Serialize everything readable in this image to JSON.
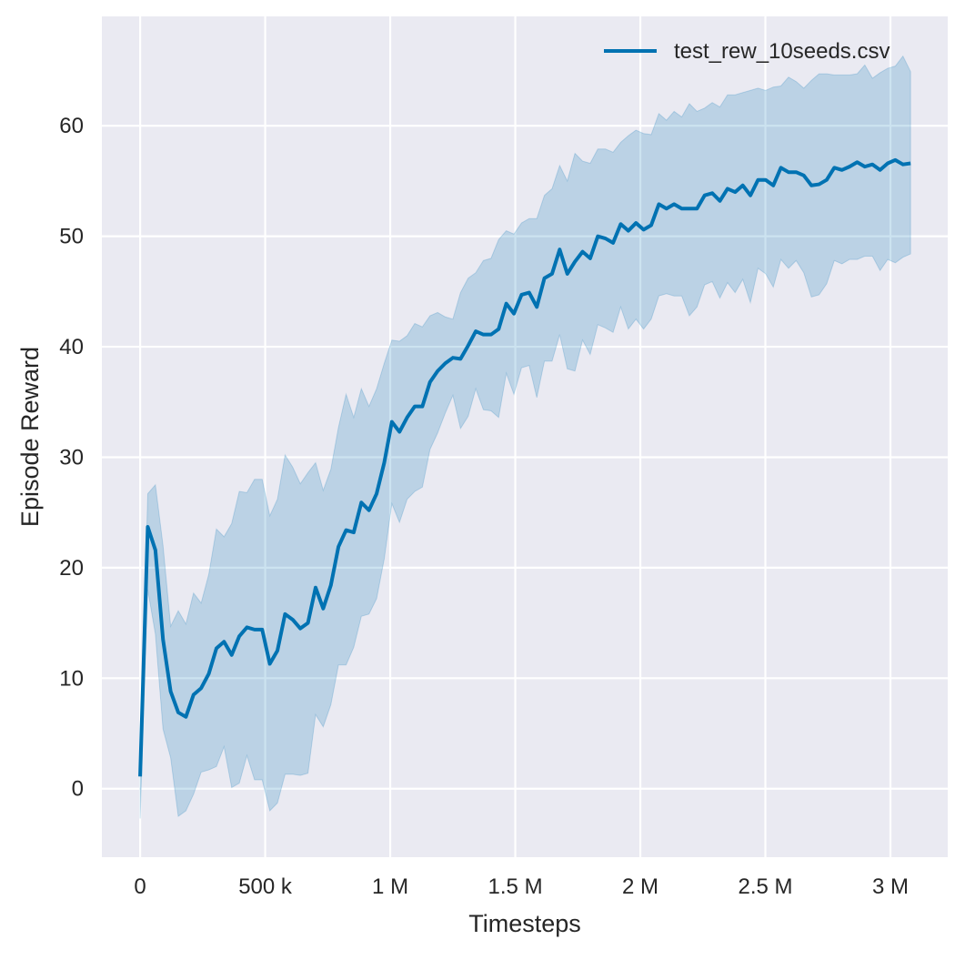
{
  "chart_data": {
    "type": "line",
    "title": "",
    "xlabel": "Timesteps",
    "ylabel": "Episode Reward",
    "xlim": [
      -153000,
      3229000
    ],
    "ylim": [
      -6.2,
      69.9
    ],
    "grid": true,
    "legend_placement": "top-right",
    "background_color": "#eaeaf2",
    "x_ticks": [
      0,
      500000,
      1000000,
      1500000,
      2000000,
      2500000,
      3000000
    ],
    "x_tick_labels": [
      "0",
      "500 k",
      "1 M",
      "1.5 M",
      "2 M",
      "2.5 M",
      "3 M"
    ],
    "y_ticks": [
      0,
      10,
      20,
      30,
      40,
      50,
      60
    ],
    "y_tick_labels": [
      "0",
      "10",
      "20",
      "30",
      "40",
      "50",
      "60"
    ],
    "series": [
      {
        "name": "test_rew_10seeds.csv",
        "color": "#0072b2",
        "x": [
          0,
          30500,
          61000,
          91500,
          122000,
          152500,
          183000,
          213500,
          244000,
          274500,
          305000,
          335500,
          366000,
          396500,
          427000,
          457500,
          488000,
          518500,
          549000,
          579500,
          610000,
          640500,
          671000,
          701500,
          732000,
          762500,
          793000,
          823500,
          854000,
          884500,
          915000,
          945500,
          976000,
          1006500,
          1037000,
          1067500,
          1098000,
          1128500,
          1159000,
          1189500,
          1220000,
          1250500,
          1281000,
          1311500,
          1342000,
          1372500,
          1403000,
          1433500,
          1464000,
          1494500,
          1525000,
          1555500,
          1586000,
          1616500,
          1647000,
          1677500,
          1708000,
          1738500,
          1769000,
          1799500,
          1830000,
          1860500,
          1891000,
          1921500,
          1952000,
          1982500,
          2013000,
          2043500,
          2074000,
          2104500,
          2135000,
          2165500,
          2196000,
          2226500,
          2257000,
          2287500,
          2318000,
          2348500,
          2379000,
          2409500,
          2440000,
          2470500,
          2501000,
          2531500,
          2562000,
          2592500,
          2623000,
          2653500,
          2684000,
          2714500,
          2745000,
          2775500,
          2806000,
          2836500,
          2867000,
          2897500,
          2928000,
          2958500,
          2989000,
          3019500,
          3050000,
          3080500
        ],
        "y": [
          1.1,
          23.7,
          21.6,
          13.5,
          8.8,
          6.9,
          6.5,
          8.5,
          9.1,
          10.4,
          12.7,
          13.3,
          12.1,
          13.8,
          14.6,
          14.4,
          14.4,
          11.3,
          12.5,
          15.8,
          15.3,
          14.5,
          15.0,
          18.2,
          16.3,
          18.4,
          21.9,
          23.4,
          23.2,
          25.9,
          25.2,
          26.7,
          29.5,
          33.2,
          32.3,
          33.6,
          34.6,
          34.6,
          36.8,
          37.8,
          38.5,
          39.0,
          38.9,
          40.1,
          41.4,
          41.1,
          41.1,
          41.6,
          43.9,
          43.0,
          44.7,
          44.9,
          43.6,
          46.2,
          46.6,
          48.8,
          46.6,
          47.7,
          48.6,
          48.0,
          50.0,
          49.8,
          49.4,
          51.1,
          50.5,
          51.2,
          50.6,
          51.0,
          52.9,
          52.5,
          52.9,
          52.5,
          52.5,
          52.5,
          53.7,
          53.9,
          53.2,
          54.3,
          54.0,
          54.6,
          53.7,
          55.1,
          55.1,
          54.6,
          56.2,
          55.8,
          55.8,
          55.5,
          54.6,
          54.7,
          55.1,
          56.2,
          56.0,
          56.3,
          56.7,
          56.3,
          56.5,
          56.0,
          56.6,
          56.9,
          56.5,
          56.6
        ],
        "lower": [
          -2.7,
          18,
          14,
          5.4,
          2.8,
          -2.5,
          -2.0,
          -0.5,
          1.5,
          1.7,
          2.0,
          3.8,
          0.1,
          0.5,
          3.0,
          0.8,
          0.8,
          -2.0,
          -1.3,
          1.3,
          1.3,
          1.2,
          1.4,
          6.7,
          5.6,
          7.6,
          11.2,
          11.2,
          12.8,
          15.6,
          15.8,
          17.2,
          20.8,
          25.8,
          24.1,
          26.2,
          26.9,
          27.3,
          30.7,
          32.2,
          34.0,
          35.6,
          32.6,
          33.7,
          36.2,
          34.3,
          34.2,
          33.6,
          37.6,
          35.7,
          38.1,
          38.3,
          35.4,
          38.7,
          38.7,
          41.1,
          38.0,
          37.8,
          40.6,
          39.3,
          42.0,
          41.7,
          41.3,
          43.6,
          41.6,
          42.5,
          41.6,
          42.5,
          44.6,
          44.8,
          44.6,
          44.6,
          42.8,
          43.6,
          45.6,
          45.9,
          44.4,
          45.8,
          44.9,
          46.1,
          44.0,
          47.1,
          46.6,
          45.4,
          47.9,
          47.1,
          47.8,
          46.7,
          44.5,
          44.7,
          45.7,
          47.8,
          47.5,
          47.9,
          47.9,
          48.2,
          48.2,
          46.9,
          47.9,
          47.6,
          48.1,
          48.4
        ],
        "upper": [
          1.0,
          26.7,
          27.5,
          22.0,
          14.7,
          16.1,
          14.9,
          17.7,
          16.8,
          19.4,
          23.5,
          22.8,
          24.0,
          26.9,
          26.8,
          28.0,
          28.0,
          24.7,
          26.2,
          30.2,
          29.1,
          27.6,
          28.6,
          29.5,
          27.0,
          28.9,
          32.7,
          35.7,
          33.6,
          36.2,
          34.6,
          36.2,
          38.5,
          40.6,
          40.5,
          41.0,
          42.1,
          41.8,
          42.8,
          43.1,
          42.7,
          42.5,
          44.9,
          46.2,
          46.7,
          47.8,
          48.0,
          49.7,
          50.5,
          50.2,
          51.2,
          51.6,
          51.6,
          53.7,
          54.3,
          56.4,
          55.0,
          57.5,
          56.8,
          56.6,
          57.9,
          57.9,
          57.6,
          58.5,
          59.1,
          59.6,
          59.3,
          59.2,
          61.1,
          60.5,
          61.3,
          60.8,
          62.0,
          61.3,
          61.6,
          62.1,
          61.7,
          62.8,
          62.8,
          63.0,
          63.2,
          63.4,
          63.2,
          63.5,
          63.6,
          64.4,
          64.0,
          63.4,
          64.1,
          64.7,
          64.7,
          64.6,
          64.6,
          64.6,
          64.7,
          65.5,
          64.3,
          64.8,
          65.2,
          65.4,
          66.3,
          64.9
        ]
      }
    ]
  }
}
